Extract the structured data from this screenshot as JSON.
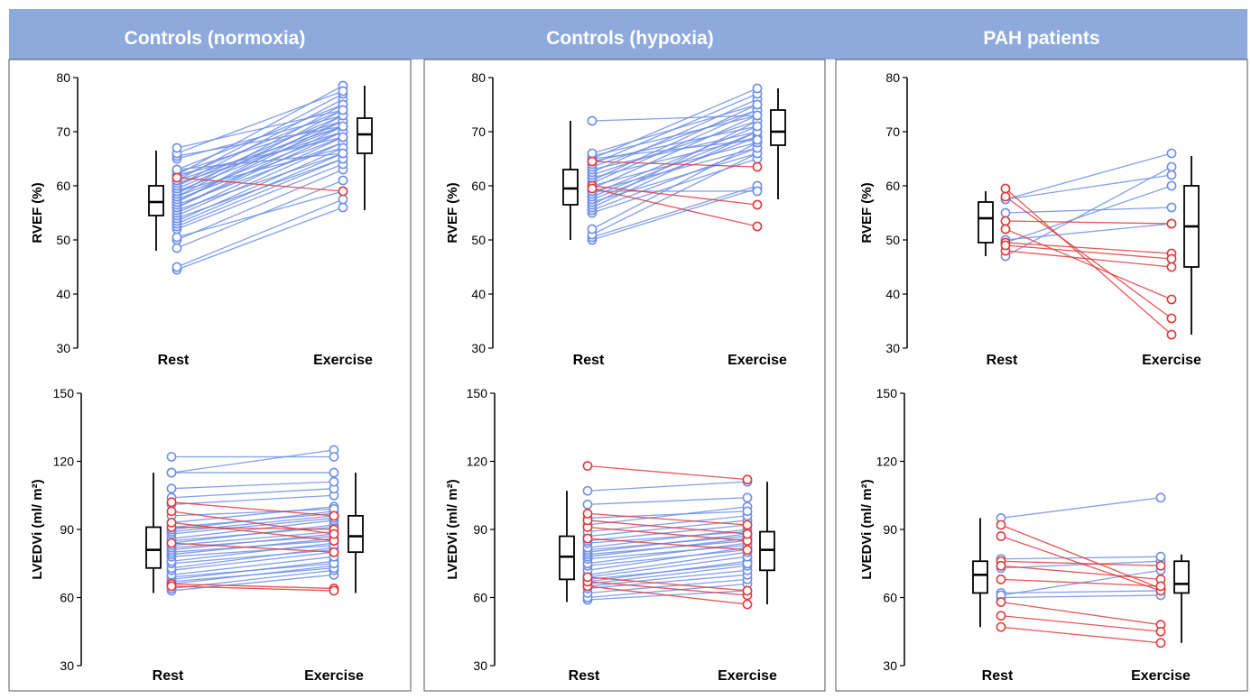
{
  "colors": {
    "header_bg": "#8EA9DB",
    "header_text": "#ffffff",
    "increase": "#6F8FE8",
    "decrease": "#E23A3A",
    "box": "#000000"
  },
  "columns": [
    {
      "title": "Controls (normoxia)"
    },
    {
      "title": "Controls (hypoxia)"
    },
    {
      "title": "PAH patients"
    }
  ],
  "chart_data": [
    {
      "type": "paired-scatter-boxplot",
      "panel": "Controls (normoxia) RVEF",
      "ylabel": "RVEF (%)",
      "ylim": [
        30,
        80
      ],
      "yticks": [
        "80",
        "70",
        "60",
        "50",
        "40",
        "30"
      ],
      "categories": [
        "Rest",
        "Exercise"
      ],
      "pairs": [
        [
          44.5,
          56
        ],
        [
          45,
          57.5
        ],
        [
          48.5,
          61
        ],
        [
          50,
          63
        ],
        [
          50.5,
          59
        ],
        [
          52,
          64
        ],
        [
          52.5,
          65
        ],
        [
          53,
          66
        ],
        [
          53.5,
          67
        ],
        [
          54,
          65
        ],
        [
          54.5,
          68
        ],
        [
          55,
          69
        ],
        [
          55.5,
          66
        ],
        [
          56,
          70
        ],
        [
          56,
          71
        ],
        [
          56.5,
          68
        ],
        [
          57,
          72
        ],
        [
          57,
          73
        ],
        [
          57.5,
          69
        ],
        [
          58,
          74
        ],
        [
          58,
          70
        ],
        [
          58.5,
          75
        ],
        [
          59,
          71
        ],
        [
          59,
          67
        ],
        [
          59.5,
          72
        ],
        [
          60,
          76
        ],
        [
          60,
          73
        ],
        [
          60.5,
          70
        ],
        [
          61,
          77
        ],
        [
          61,
          71
        ],
        [
          61.5,
          74
        ],
        [
          62,
          78.5
        ],
        [
          62,
          69
        ],
        [
          62.5,
          72
        ],
        [
          63,
          75
        ],
        [
          63,
          66
        ],
        [
          61.5,
          59
        ],
        [
          65,
          73
        ],
        [
          65.5,
          71
        ],
        [
          66,
          77.5
        ],
        [
          67,
          74
        ]
      ],
      "box": {
        "rest": {
          "whisker_low": 48,
          "q1": 54.5,
          "median": 57,
          "q3": 60,
          "whisker_high": 66.5
        },
        "exercise": {
          "whisker_low": 55.5,
          "q1": 66,
          "median": 69.5,
          "q3": 72.5,
          "whisker_high": 78.5
        }
      }
    },
    {
      "type": "paired-scatter-boxplot",
      "panel": "Controls (hypoxia) RVEF",
      "ylabel": "RVEF (%)",
      "ylim": [
        30,
        80
      ],
      "yticks": [
        "80",
        "70",
        "60",
        "50",
        "40",
        "30"
      ],
      "categories": [
        "Rest",
        "Exercise"
      ],
      "pairs": [
        [
          50,
          59.5
        ],
        [
          50.5,
          60
        ],
        [
          51,
          66
        ],
        [
          52,
          68
        ],
        [
          55,
          65
        ],
        [
          55.5,
          67
        ],
        [
          56,
          70
        ],
        [
          56.5,
          72
        ],
        [
          57,
          66
        ],
        [
          57.5,
          69
        ],
        [
          58,
          70
        ],
        [
          58.5,
          71
        ],
        [
          59,
          59
        ],
        [
          59,
          67
        ],
        [
          59.5,
          73
        ],
        [
          60,
          56.5
        ],
        [
          60,
          68
        ],
        [
          60.5,
          74
        ],
        [
          61,
          75
        ],
        [
          61.5,
          69
        ],
        [
          62,
          72
        ],
        [
          62.5,
          76
        ],
        [
          63,
          70
        ],
        [
          63.5,
          74
        ],
        [
          64,
          77
        ],
        [
          64.5,
          71
        ],
        [
          64.5,
          63.5
        ],
        [
          65,
          78
        ],
        [
          65,
          68.5
        ],
        [
          65.5,
          73
        ],
        [
          66,
          75
        ],
        [
          72,
          73
        ],
        [
          59.5,
          52.5
        ]
      ],
      "box": {
        "rest": {
          "whisker_low": 50,
          "q1": 56.5,
          "median": 59.5,
          "q3": 63,
          "whisker_high": 72
        },
        "exercise": {
          "whisker_low": 57.5,
          "q1": 67.5,
          "median": 70,
          "q3": 74,
          "whisker_high": 78
        }
      }
    },
    {
      "type": "paired-scatter-boxplot",
      "panel": "PAH patients RVEF",
      "ylabel": "RVEF (%)",
      "ylim": [
        30,
        80
      ],
      "yticks": [
        "80",
        "70",
        "60",
        "50",
        "40",
        "30"
      ],
      "categories": [
        "Rest",
        "Exercise"
      ],
      "pairs": [
        [
          47,
          63.5
        ],
        [
          49.5,
          60
        ],
        [
          53.5,
          53
        ],
        [
          55,
          56
        ],
        [
          57.5,
          66
        ],
        [
          57.5,
          62
        ],
        [
          49.5,
          47.5
        ],
        [
          50,
          53
        ],
        [
          48,
          45
        ],
        [
          49,
          46.5
        ],
        [
          52,
          39
        ],
        [
          58,
          35.5
        ],
        [
          59.5,
          32.5
        ]
      ],
      "box": {
        "rest": {
          "whisker_low": 47,
          "q1": 49.5,
          "median": 54,
          "q3": 57,
          "whisker_high": 59
        },
        "exercise": {
          "whisker_low": 32.5,
          "q1": 45,
          "median": 52.5,
          "q3": 60,
          "whisker_high": 65.5
        }
      }
    },
    {
      "type": "paired-scatter-boxplot",
      "panel": "Controls (normoxia) LVEDVi",
      "ylabel": "LVEDVi (ml/ m²)",
      "ylim": [
        30,
        150
      ],
      "yticks": [
        "150",
        "120",
        "90",
        "60",
        "30"
      ],
      "categories": [
        "Rest",
        "Exercise"
      ],
      "pairs": [
        [
          63,
          70
        ],
        [
          64,
          72
        ],
        [
          66,
          74
        ],
        [
          67,
          73
        ],
        [
          68,
          76
        ],
        [
          69,
          75
        ],
        [
          70,
          78
        ],
        [
          72,
          80
        ],
        [
          73,
          82
        ],
        [
          75,
          81
        ],
        [
          76,
          84
        ],
        [
          78,
          83
        ],
        [
          79,
          86
        ],
        [
          80,
          85
        ],
        [
          81,
          88
        ],
        [
          82,
          87
        ],
        [
          83,
          89
        ],
        [
          84,
          92
        ],
        [
          85,
          91
        ],
        [
          86,
          94
        ],
        [
          88,
          95
        ],
        [
          89,
          96
        ],
        [
          90,
          98
        ],
        [
          91,
          97
        ],
        [
          93,
          100
        ],
        [
          96,
          99
        ],
        [
          101,
          105
        ],
        [
          104,
          108
        ],
        [
          108,
          111
        ],
        [
          115,
          125
        ],
        [
          115,
          115
        ],
        [
          122,
          122
        ],
        [
          66,
          64
        ],
        [
          65,
          63
        ],
        [
          91,
          90
        ],
        [
          93,
          85
        ],
        [
          98,
          88
        ],
        [
          102,
          96
        ],
        [
          84,
          80
        ]
      ],
      "box": {
        "rest": {
          "whisker_low": 62,
          "q1": 73,
          "median": 81,
          "q3": 91,
          "whisker_high": 115
        },
        "exercise": {
          "whisker_low": 62,
          "q1": 80,
          "median": 87,
          "q3": 96,
          "whisker_high": 115
        }
      }
    },
    {
      "type": "paired-scatter-boxplot",
      "panel": "Controls (hypoxia) LVEDVi",
      "ylabel": "LVEDVi (ml/ m²)",
      "ylim": [
        30,
        150
      ],
      "yticks": [
        "150",
        "120",
        "90",
        "60",
        "30"
      ],
      "categories": [
        "Rest",
        "Exercise"
      ],
      "pairs": [
        [
          59,
          63
        ],
        [
          60,
          66
        ],
        [
          62,
          68
        ],
        [
          64,
          70
        ],
        [
          65,
          72
        ],
        [
          66,
          74
        ],
        [
          67,
          76
        ],
        [
          68,
          75
        ],
        [
          69,
          78
        ],
        [
          70,
          80
        ],
        [
          72,
          82
        ],
        [
          74,
          81
        ],
        [
          75,
          84
        ],
        [
          77,
          83
        ],
        [
          78,
          86
        ],
        [
          79,
          85
        ],
        [
          80,
          88
        ],
        [
          81,
          87
        ],
        [
          82,
          90
        ],
        [
          84,
          89
        ],
        [
          85,
          92
        ],
        [
          87,
          94
        ],
        [
          89,
          96
        ],
        [
          92,
          100
        ],
        [
          95,
          98
        ],
        [
          101,
          104
        ],
        [
          107,
          111
        ],
        [
          118,
          112
        ],
        [
          65,
          57
        ],
        [
          67,
          61
        ],
        [
          69,
          63
        ],
        [
          86,
          81
        ],
        [
          91,
          85
        ],
        [
          94,
          88
        ],
        [
          97,
          92
        ]
      ],
      "box": {
        "rest": {
          "whisker_low": 58,
          "q1": 68,
          "median": 78,
          "q3": 87,
          "whisker_high": 107
        },
        "exercise": {
          "whisker_low": 57,
          "q1": 72,
          "median": 81,
          "q3": 89,
          "whisker_high": 111
        }
      }
    },
    {
      "type": "paired-scatter-boxplot",
      "panel": "PAH patients LVEDVi",
      "ylabel": "LVEDVi (ml/ m²)",
      "ylim": [
        30,
        150
      ],
      "yticks": [
        "150",
        "120",
        "90",
        "60",
        "30"
      ],
      "categories": [
        "Rest",
        "Exercise"
      ],
      "pairs": [
        [
          60,
          61
        ],
        [
          62,
          63
        ],
        [
          73,
          76
        ],
        [
          77,
          78
        ],
        [
          95,
          104
        ],
        [
          61,
          72
        ],
        [
          92,
          64
        ],
        [
          87,
          63
        ],
        [
          76,
          74
        ],
        [
          74,
          68
        ],
        [
          68,
          65
        ],
        [
          58,
          48
        ],
        [
          52,
          45
        ],
        [
          47,
          40
        ]
      ],
      "box": {
        "rest": {
          "whisker_low": 47,
          "q1": 62,
          "median": 70,
          "q3": 76,
          "whisker_high": 95
        },
        "exercise": {
          "whisker_low": 40,
          "q1": 62,
          "median": 66,
          "q3": 76,
          "whisker_high": 79
        }
      }
    }
  ]
}
